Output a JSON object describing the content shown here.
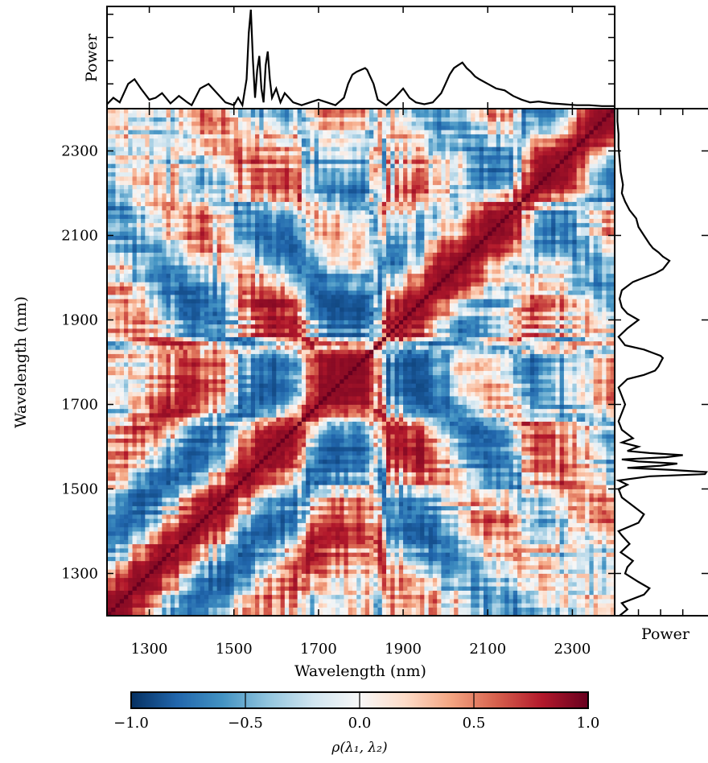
{
  "chart_data": {
    "type": "heatmap",
    "title": "",
    "xlabel": "Wavelength (nm)",
    "ylabel": "Wavelength (nm)",
    "xlim": [
      1200,
      2400
    ],
    "ylim": [
      1200,
      2400
    ],
    "xticks": [
      1300,
      1500,
      1700,
      1900,
      2100,
      2300
    ],
    "yticks": [
      1300,
      1500,
      1700,
      1900,
      2100,
      2300
    ],
    "colormap": "RdBu_r",
    "colorbar": {
      "label": "ρ(λ₁, λ₂)",
      "range": [
        -1.0,
        1.0
      ],
      "ticks": [
        "−1.0",
        "−0.5",
        "0.0",
        "0.5",
        "1.0"
      ],
      "tick_values": [
        -1.0,
        -0.5,
        0.0,
        0.5,
        1.0
      ]
    },
    "colors": {
      "neg": "#053061",
      "mid": "#f7f7f7",
      "pos": "#67001f"
    },
    "marginal_top": {
      "ylabel": "Power",
      "x": [
        1200,
        1215,
        1230,
        1250,
        1265,
        1280,
        1300,
        1315,
        1330,
        1350,
        1370,
        1390,
        1400,
        1420,
        1440,
        1460,
        1480,
        1500,
        1510,
        1520,
        1530,
        1535,
        1540,
        1545,
        1550,
        1555,
        1560,
        1565,
        1570,
        1575,
        1580,
        1585,
        1590,
        1600,
        1610,
        1620,
        1640,
        1660,
        1680,
        1700,
        1720,
        1740,
        1760,
        1770,
        1780,
        1790,
        1800,
        1810,
        1815,
        1820,
        1830,
        1840,
        1860,
        1880,
        1900,
        1915,
        1930,
        1950,
        1970,
        1990,
        2000,
        2010,
        2020,
        2030,
        2040,
        2050,
        2060,
        2070,
        2080,
        2100,
        2120,
        2140,
        2160,
        2180,
        2200,
        2220,
        2250,
        2280,
        2310,
        2340,
        2370,
        2400
      ],
      "y": [
        0.03,
        0.1,
        0.05,
        0.25,
        0.3,
        0.2,
        0.08,
        0.1,
        0.15,
        0.04,
        0.12,
        0.05,
        0.02,
        0.2,
        0.25,
        0.15,
        0.05,
        0.02,
        0.1,
        0.02,
        0.3,
        0.8,
        1.05,
        0.5,
        0.1,
        0.4,
        0.55,
        0.2,
        0.05,
        0.45,
        0.6,
        0.3,
        0.1,
        0.2,
        0.05,
        0.15,
        0.05,
        0.02,
        0.05,
        0.08,
        0.05,
        0.02,
        0.1,
        0.25,
        0.35,
        0.38,
        0.4,
        0.42,
        0.4,
        0.35,
        0.25,
        0.08,
        0.02,
        0.1,
        0.2,
        0.1,
        0.05,
        0.03,
        0.05,
        0.15,
        0.25,
        0.35,
        0.42,
        0.45,
        0.48,
        0.42,
        0.38,
        0.33,
        0.3,
        0.25,
        0.2,
        0.18,
        0.12,
        0.08,
        0.05,
        0.06,
        0.04,
        0.03,
        0.02,
        0.02,
        0.01,
        0.01
      ]
    },
    "marginal_right": {
      "xlabel": "Power",
      "note": "same spectrum as top marginal, rotated"
    }
  }
}
